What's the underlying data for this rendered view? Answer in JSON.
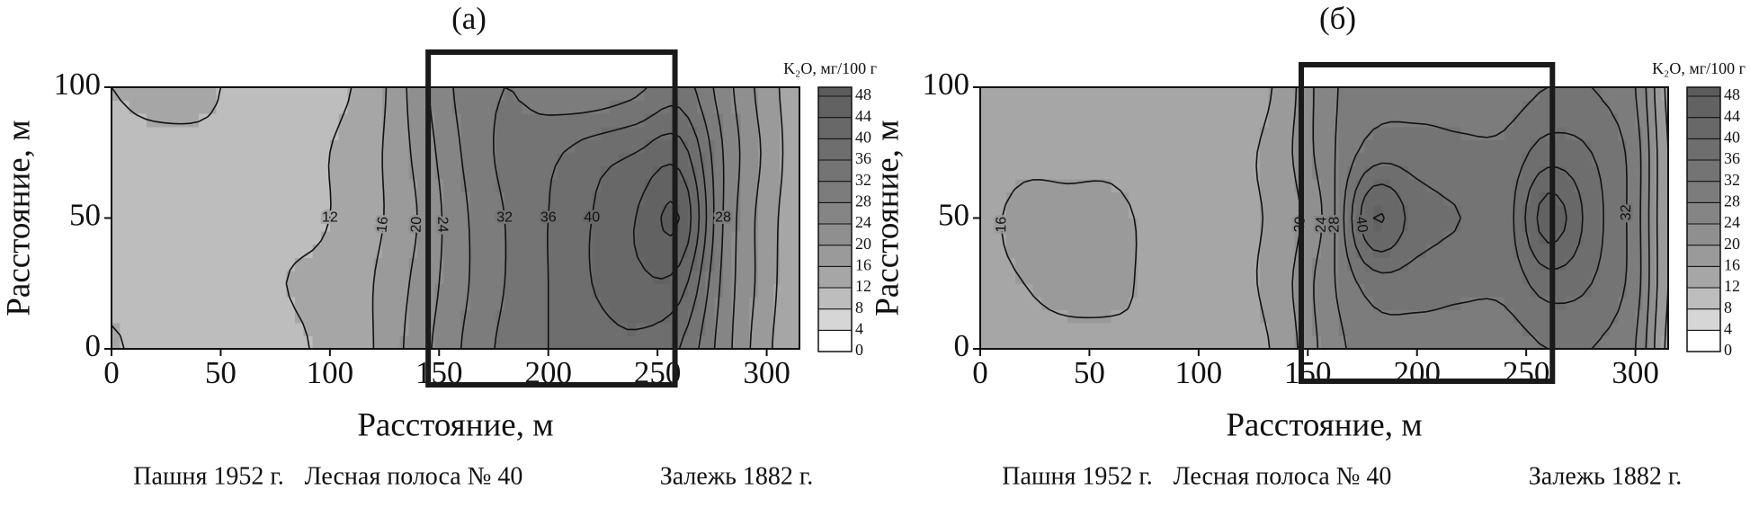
{
  "chart_data": [
    {
      "type": "contour",
      "title": "(а)",
      "xlabel": "Расстояние, м",
      "ylabel": "Расстояние, м",
      "xlim": [
        0,
        315
      ],
      "ylim": [
        0,
        100
      ],
      "xticks": [
        0,
        50,
        100,
        150,
        200,
        250,
        300
      ],
      "yticks": [
        0,
        50,
        100
      ],
      "x": [
        0,
        20,
        40,
        60,
        80,
        100,
        120,
        140,
        160,
        180,
        200,
        220,
        240,
        260,
        280,
        300,
        315
      ],
      "y": [
        0,
        25,
        50,
        75,
        100
      ],
      "z": [
        [
          13,
          9,
          9,
          9,
          11,
          13,
          16,
          22,
          28,
          33,
          36,
          38,
          39,
          36,
          26,
          17,
          13
        ],
        [
          10,
          9.5,
          9.5,
          10,
          12,
          13,
          16,
          21,
          27,
          32,
          36,
          40,
          43,
          42,
          27,
          18,
          13
        ],
        [
          10,
          10,
          10,
          10,
          11,
          12,
          15,
          20,
          27,
          32,
          36,
          40,
          44,
          48,
          28,
          18,
          14
        ],
        [
          11,
          11,
          11,
          11,
          11,
          12,
          15,
          21,
          28,
          33,
          35,
          38,
          40,
          42,
          28,
          19,
          14
        ],
        [
          12,
          13,
          13,
          11,
          11,
          11,
          14,
          22,
          29,
          32,
          30,
          29,
          31,
          34,
          26,
          18,
          14
        ]
      ],
      "contour_levels": [
        4,
        8,
        12,
        16,
        20,
        24,
        28,
        32,
        36,
        40,
        44,
        48
      ],
      "contour_labels": [
        12,
        16,
        20,
        24,
        28,
        32,
        36,
        40
      ],
      "colorbar": {
        "label": "K₂O, мг/100 г",
        "ticks": [
          0,
          4,
          8,
          12,
          16,
          20,
          24,
          28,
          32,
          36,
          40,
          44,
          48
        ],
        "colors": [
          "#ffffff",
          "#d6d6d6",
          "#bdbdbd",
          "#a6a6a6",
          "#9a9a9a",
          "#8f8f8f",
          "#858585",
          "#7c7c7c",
          "#747474",
          "#6e6e6e",
          "#686868",
          "#626262",
          "#5c5c5c"
        ]
      },
      "highlight_x": [
        145,
        258
      ],
      "annotations": [
        "Пашня 1952 г.",
        "Лесная полоса № 40",
        "Залежь 1882 г."
      ]
    },
    {
      "type": "contour",
      "title": "(б)",
      "xlabel": "Расстояние, м",
      "ylabel": "Расстояние, м",
      "xlim": [
        0,
        315
      ],
      "ylim": [
        0,
        100
      ],
      "xticks": [
        0,
        50,
        100,
        150,
        200,
        250,
        300
      ],
      "yticks": [
        0,
        50,
        100
      ],
      "x": [
        0,
        20,
        40,
        60,
        80,
        100,
        120,
        140,
        160,
        180,
        200,
        220,
        240,
        260,
        280,
        300,
        315
      ],
      "y": [
        0,
        25,
        50,
        75,
        100
      ],
      "z": [
        [
          15,
          15,
          15,
          15,
          16,
          15,
          14,
          18,
          26,
          30,
          30,
          30,
          30,
          32,
          32,
          28,
          15
        ],
        [
          15,
          16,
          17,
          17,
          15,
          14,
          15,
          19,
          27,
          34,
          34,
          33,
          33,
          38,
          36,
          30,
          16
        ],
        [
          15,
          17,
          17,
          17,
          15,
          14,
          15,
          18,
          26,
          44,
          38,
          36,
          34,
          46,
          38,
          30,
          16
        ],
        [
          14,
          15,
          15,
          15,
          14,
          14,
          15,
          19,
          27,
          34,
          34,
          33,
          33,
          38,
          36,
          30,
          16
        ],
        [
          14,
          14,
          14,
          14,
          13,
          12,
          13,
          18,
          27,
          30,
          30,
          30,
          30,
          32,
          32,
          28,
          15
        ]
      ],
      "contour_levels": [
        4,
        8,
        12,
        16,
        20,
        24,
        28,
        32,
        36,
        40,
        44,
        48
      ],
      "contour_labels": [
        16,
        20,
        24,
        28,
        32,
        40
      ],
      "colorbar": {
        "label": "K₂O, мг/100 г",
        "ticks": [
          0,
          4,
          8,
          12,
          16,
          20,
          24,
          28,
          32,
          36,
          40,
          44,
          48
        ],
        "colors": [
          "#ffffff",
          "#d6d6d6",
          "#bdbdbd",
          "#a6a6a6",
          "#9a9a9a",
          "#8f8f8f",
          "#858585",
          "#7c7c7c",
          "#747474",
          "#6e6e6e",
          "#686868",
          "#626262",
          "#5c5c5c"
        ]
      },
      "highlight_x": [
        147,
        262
      ],
      "annotations": [
        "Пашня 1952 г.",
        "Лесная полоса № 40",
        "Залежь 1882 г."
      ]
    }
  ]
}
